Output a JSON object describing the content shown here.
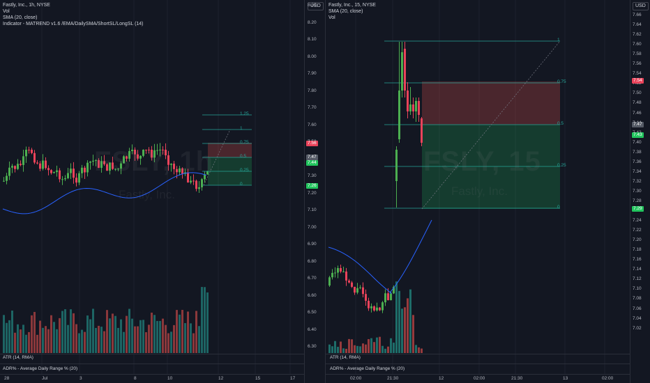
{
  "colors": {
    "bg": "#131722",
    "up": "#4caf50",
    "down": "#e9435a",
    "vol_up": "#26a69a",
    "vol_down": "#ef5350",
    "sma": "#2962ff",
    "stop": "#ef5350",
    "target": "#22c55e",
    "fib": "#26a69a"
  },
  "left": {
    "legend": [
      "Fastly, Inc., 1h, NYSE",
      "Vol",
      "SMA (20, close)",
      "Indicator - MATREND v1.6 /EMA/DailySMA/ShortSL/LongSL (14)"
    ],
    "watermark": "FSLY, 1h",
    "watermark_sub": "Fastly, Inc.",
    "atr_label": "ATR (14, RMA)",
    "adr_label": "ADR% - Average Daily Range % (20)",
    "time_labels": [
      "28",
      "Jul",
      "3",
      "8",
      "10",
      "12",
      "15",
      "17"
    ],
    "fib_labels": [
      "1.25",
      "1",
      "0.75",
      "0.5",
      "0.25",
      "0"
    ],
    "price_tags": [
      "7.56",
      "7.47",
      "7.44",
      "7.26"
    ]
  },
  "right": {
    "legend": [
      "Fastly, Inc., 15, NYSE",
      "SMA (20, close)",
      "Vol"
    ],
    "watermark": "FSLY, 15",
    "watermark_sub": "Fastly, Inc.",
    "atr_label": "ATR (14, RMA)",
    "adr_label": "ADR% - Average Daily Range % (20)",
    "time_labels": [
      "02:00",
      "21:30",
      "12",
      "02:00",
      "21:30",
      "13",
      "02:00"
    ],
    "fib_labels": [
      "1",
      "0.75",
      "0.5",
      "0.25",
      "0"
    ],
    "price_tags": [
      "7.54",
      "7.47",
      "7.43",
      "7.29"
    ]
  },
  "mid_axis": {
    "currency": "USD",
    "labels": [
      "8.30",
      "8.20",
      "8.10",
      "8.00",
      "7.90",
      "7.80",
      "7.70",
      "7.60",
      "7.50",
      "7.40",
      "7.30",
      "7.20",
      "7.10",
      "7.00",
      "6.90",
      "6.80",
      "6.70",
      "6.60",
      "6.50",
      "6.40",
      "6.30"
    ],
    "tags": [
      "7.56",
      "7.47",
      "7.44",
      "7.26"
    ]
  },
  "right_axis": {
    "currency": "USD",
    "labels": [
      "7.66",
      "7.64",
      "7.62",
      "7.60",
      "7.58",
      "7.56",
      "7.54",
      "7.52",
      "7.50",
      "7.48",
      "7.46",
      "7.44",
      "7.42",
      "7.40",
      "7.38",
      "7.36",
      "7.34",
      "7.32",
      "7.30",
      "7.28",
      "7.26",
      "7.24",
      "7.22",
      "7.20",
      "7.18",
      "7.16",
      "7.14",
      "7.12",
      "7.10",
      "7.08",
      "7.06",
      "7.04",
      "7.02"
    ],
    "tags": [
      "7.54",
      "7.47",
      "7.43",
      "7.29"
    ]
  }
}
